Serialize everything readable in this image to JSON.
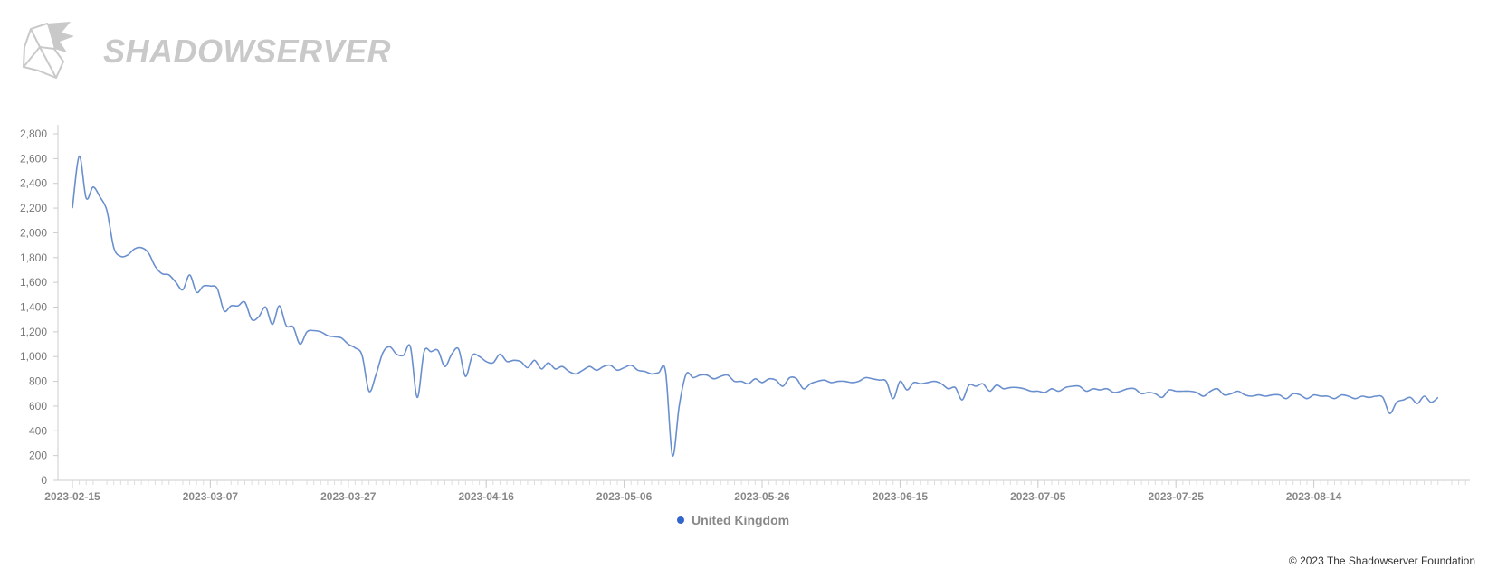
{
  "brand": {
    "name": "SHADOWSERVER",
    "icon": "shadowserver-logo-icon"
  },
  "footer": {
    "copyright": "© 2023 The Shadowserver Foundation"
  },
  "colors": {
    "series": "#6a8fce",
    "axis": "#cccccc",
    "legend_dot": "#3366cc"
  },
  "chart_data": {
    "type": "line",
    "title": "",
    "xlabel": "",
    "ylabel": "",
    "ylim": [
      0,
      2800
    ],
    "yticks": [
      0,
      200,
      400,
      600,
      800,
      1000,
      1200,
      1400,
      1600,
      1800,
      2000,
      2200,
      2400,
      2600,
      2800
    ],
    "ytick_labels": [
      "0",
      "200",
      "400",
      "600",
      "800",
      "1,000",
      "1,200",
      "1,400",
      "1,600",
      "1,800",
      "2,000",
      "2,200",
      "2,400",
      "2,600",
      "2,800"
    ],
    "xticks": [
      "2023-02-15",
      "2023-03-07",
      "2023-03-27",
      "2023-04-16",
      "2023-05-06",
      "2023-05-26",
      "2023-06-15",
      "2023-07-05",
      "2023-07-25",
      "2023-08-14"
    ],
    "legend": {
      "position": "bottom-center"
    },
    "grid": false,
    "series": [
      {
        "name": "United Kingdom",
        "x_start": "2023-02-15",
        "x_end": "2023-08-31",
        "step_days": 1,
        "values": [
          2200,
          2620,
          2280,
          2370,
          2290,
          2180,
          1880,
          1810,
          1820,
          1870,
          1880,
          1840,
          1730,
          1670,
          1660,
          1600,
          1540,
          1660,
          1520,
          1570,
          1570,
          1550,
          1370,
          1410,
          1410,
          1440,
          1300,
          1320,
          1400,
          1260,
          1410,
          1250,
          1240,
          1100,
          1200,
          1210,
          1200,
          1170,
          1160,
          1150,
          1100,
          1070,
          1010,
          720,
          850,
          1030,
          1080,
          1020,
          1010,
          1080,
          670,
          1040,
          1040,
          1050,
          920,
          1020,
          1060,
          840,
          1010,
          1000,
          960,
          950,
          1020,
          960,
          970,
          960,
          910,
          970,
          900,
          950,
          900,
          920,
          880,
          860,
          890,
          920,
          890,
          920,
          930,
          890,
          910,
          930,
          890,
          880,
          860,
          870,
          880,
          200,
          610,
          860,
          830,
          850,
          850,
          820,
          840,
          850,
          800,
          800,
          780,
          820,
          790,
          820,
          810,
          760,
          830,
          820,
          740,
          780,
          800,
          810,
          790,
          800,
          800,
          790,
          800,
          830,
          820,
          810,
          800,
          660,
          800,
          730,
          790,
          780,
          790,
          800,
          780,
          740,
          750,
          650,
          770,
          760,
          780,
          720,
          770,
          740,
          750,
          750,
          740,
          720,
          720,
          710,
          740,
          720,
          750,
          760,
          760,
          720,
          740,
          730,
          740,
          710,
          720,
          740,
          740,
          700,
          710,
          700,
          670,
          730,
          720,
          720,
          720,
          710,
          680,
          720,
          740,
          690,
          700,
          720,
          690,
          680,
          690,
          680,
          690,
          690,
          660,
          700,
          690,
          660,
          690,
          680,
          680,
          660,
          690,
          680,
          660,
          680,
          670,
          680,
          670,
          540,
          630,
          650,
          670,
          620,
          680,
          630,
          670
        ]
      }
    ]
  }
}
